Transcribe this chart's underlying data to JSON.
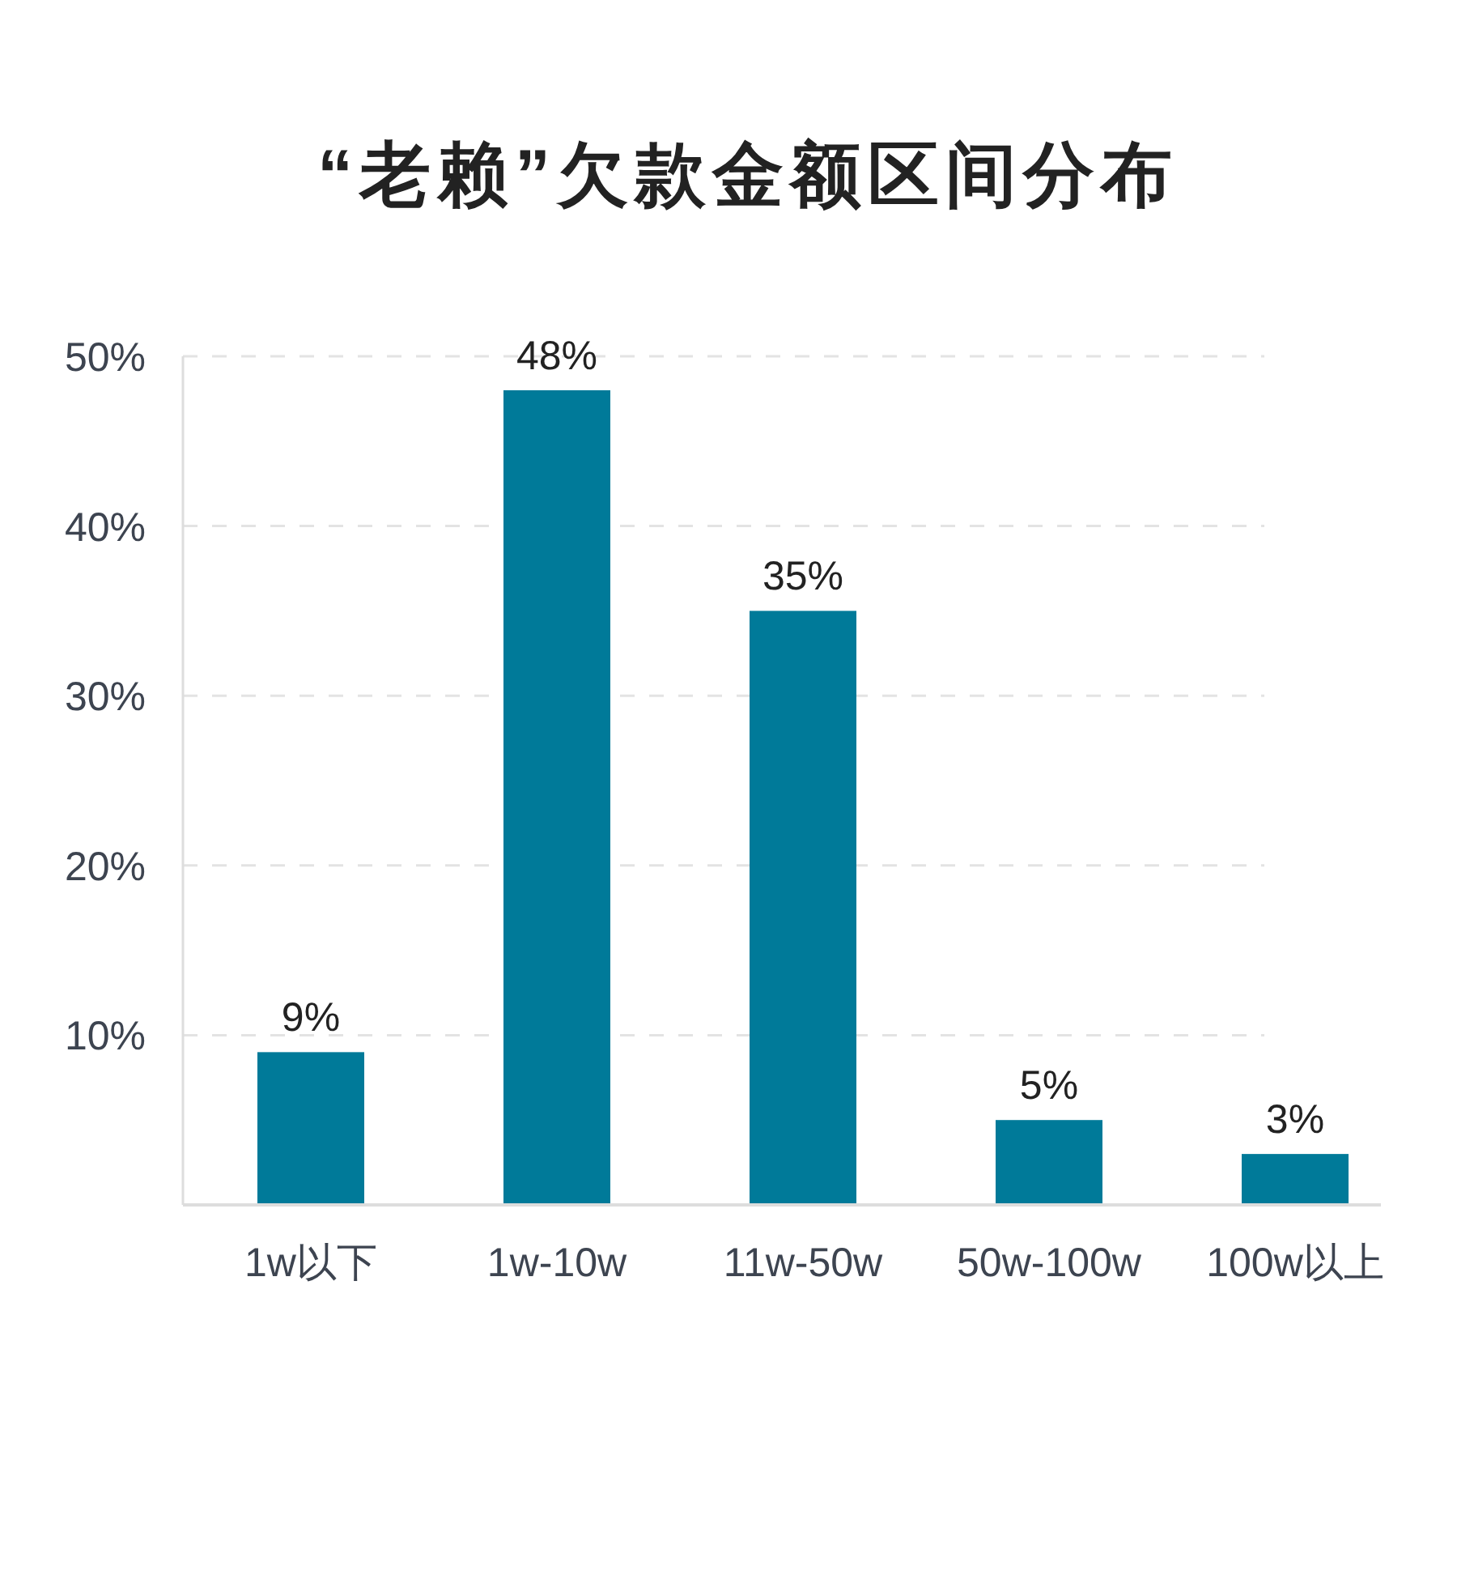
{
  "chart_data": {
    "type": "bar",
    "title": "“老赖”欠款金额区间分布",
    "categories": [
      "1w以下",
      "1w-10w",
      "11w-50w",
      "50w-100w",
      "100w以上"
    ],
    "values": [
      9,
      48,
      35,
      5,
      3
    ],
    "value_labels": [
      "9%",
      "48%",
      "35%",
      "5%",
      "3%"
    ],
    "color": "#007a99",
    "ylim": [
      0,
      50
    ],
    "yticks": [
      {
        "value": 10,
        "label": "10%"
      },
      {
        "value": 20,
        "label": "20%"
      },
      {
        "value": 30,
        "label": "30%"
      },
      {
        "value": 40,
        "label": "40%"
      },
      {
        "value": 50,
        "label": "50%"
      }
    ],
    "grid": "y"
  }
}
